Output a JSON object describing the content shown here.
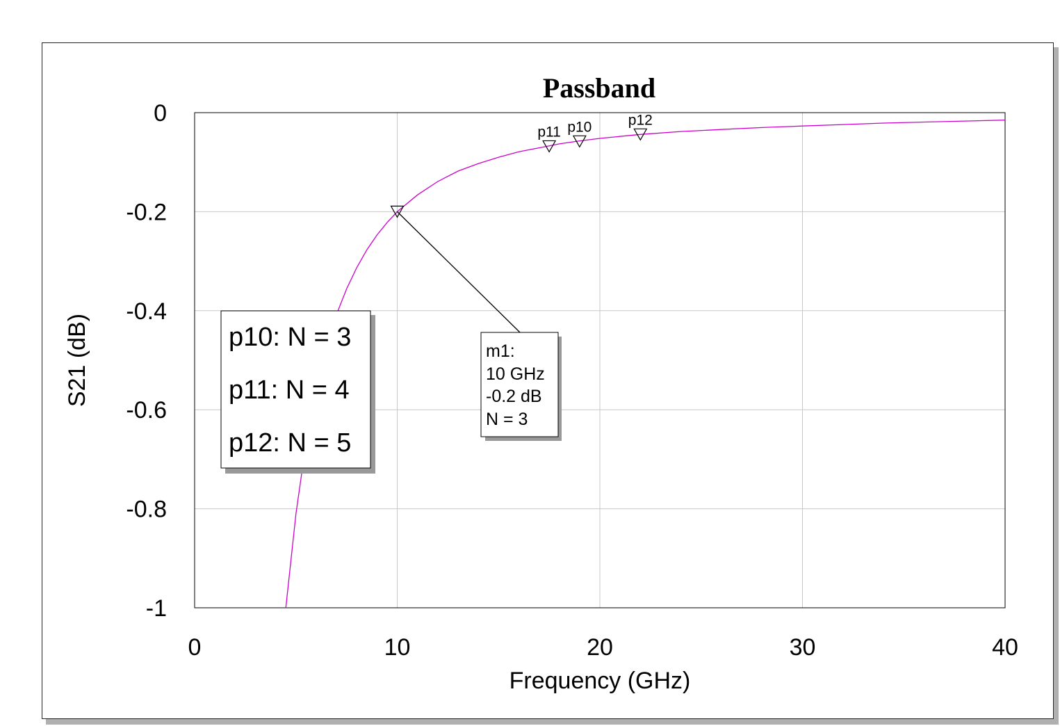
{
  "chart_data": {
    "type": "line",
    "title": "Passband",
    "xlabel": "Frequency (GHz)",
    "ylabel": "S21 (dB)",
    "xlim": [
      0,
      40
    ],
    "ylim": [
      -1,
      0
    ],
    "x_ticks": [
      0,
      10,
      20,
      30,
      40
    ],
    "x_tick_labels": [
      "0",
      "10",
      "20",
      "30",
      "40"
    ],
    "y_ticks": [
      0,
      -0.2,
      -0.4,
      -0.6,
      -0.8,
      -1
    ],
    "y_tick_labels": [
      "0",
      "-0.2",
      "-0.4",
      "-0.6",
      "-0.8",
      "-1"
    ],
    "grid": true,
    "series": [
      {
        "color": "#cc00cc",
        "x": [
          4.5,
          5,
          5.5,
          6,
          6.5,
          7,
          7.5,
          8,
          8.5,
          9,
          9.5,
          10,
          11,
          12,
          13,
          14,
          15,
          16,
          17,
          18,
          19,
          20,
          22,
          24,
          26,
          28,
          30,
          32,
          34,
          36,
          38,
          40
        ],
        "y": [
          -1.0,
          -0.81,
          -0.667,
          -0.557,
          -0.476,
          -0.408,
          -0.356,
          -0.313,
          -0.277,
          -0.247,
          -0.222,
          -0.2,
          -0.166,
          -0.139,
          -0.118,
          -0.103,
          -0.09,
          -0.079,
          -0.071,
          -0.063,
          -0.057,
          -0.052,
          -0.044,
          -0.038,
          -0.034,
          -0.03,
          -0.027,
          -0.024,
          -0.021,
          -0.019,
          -0.017,
          -0.015
        ]
      }
    ],
    "markers": [
      {
        "label": "m1",
        "x": 10,
        "y": -0.2
      },
      {
        "label": "p11",
        "x": 17.5,
        "y": -0.068
      },
      {
        "label": "p10",
        "x": 19,
        "y": -0.058
      },
      {
        "label": "p12",
        "x": 22,
        "y": -0.044
      }
    ],
    "legend_box": {
      "lines": [
        "p10: N = 3",
        "p11: N = 4",
        "p12: N = 5"
      ]
    },
    "marker_callout": {
      "lines": [
        "m1:",
        "10 GHz",
        "-0.2 dB",
        "N = 3"
      ]
    }
  }
}
